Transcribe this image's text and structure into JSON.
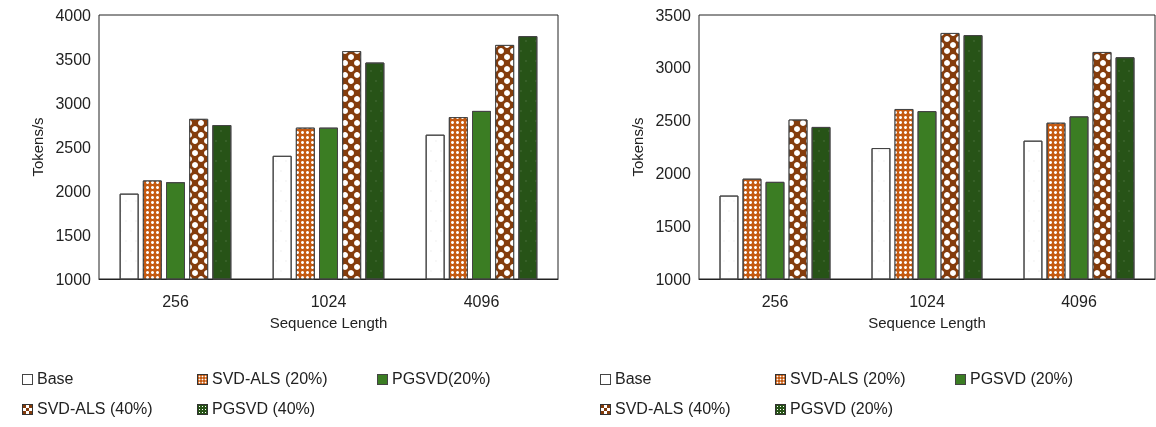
{
  "chart_data": [
    {
      "type": "bar",
      "xlabel": "Sequence Length",
      "ylabel": "Tokens/s",
      "categories": [
        "256",
        "1024",
        "4096"
      ],
      "ylim": [
        1000,
        4000
      ],
      "yticks": [
        1000,
        1500,
        2000,
        2500,
        3000,
        3500,
        4000
      ],
      "grid": false,
      "legend": "bottom",
      "series": [
        {
          "name": "Base",
          "color": "#ffffff",
          "values": [
            1970,
            2400,
            2640
          ]
        },
        {
          "name": "SVD-ALS (20%)",
          "color": "#c55a11",
          "values": [
            2120,
            2720,
            2840
          ]
        },
        {
          "name": "PGSVD(20%)",
          "color": "#3b7d23",
          "values": [
            2100,
            2720,
            2910
          ]
        },
        {
          "name": "SVD-ALS (40%)",
          "color": "#843c0c",
          "values": [
            2820,
            3590,
            3660
          ]
        },
        {
          "name": "PGSVD (40%)",
          "color": "#275317",
          "values": [
            2750,
            3460,
            3760
          ]
        }
      ]
    },
    {
      "type": "bar",
      "xlabel": "Sequence Length",
      "ylabel": "Tokens/s",
      "categories": [
        "256",
        "1024",
        "4096"
      ],
      "ylim": [
        1000,
        3500
      ],
      "yticks": [
        1000,
        1500,
        2000,
        2500,
        3000,
        3500
      ],
      "grid": false,
      "legend": "bottom",
      "series": [
        {
          "name": "Base",
          "color": "#ffffff",
          "values": [
            1790,
            2240,
            2310
          ]
        },
        {
          "name": "SVD-ALS (20%)",
          "color": "#c55a11",
          "values": [
            1950,
            2610,
            2480
          ]
        },
        {
          "name": "PGSVD (20%)",
          "color": "#3b7d23",
          "values": [
            1920,
            2590,
            2540
          ]
        },
        {
          "name": "SVD-ALS (40%)",
          "color": "#843c0c",
          "values": [
            2510,
            3330,
            3150
          ]
        },
        {
          "name": "PGSVD (20%)",
          "color": "#275317",
          "values": [
            2440,
            3310,
            3100
          ]
        }
      ]
    }
  ]
}
